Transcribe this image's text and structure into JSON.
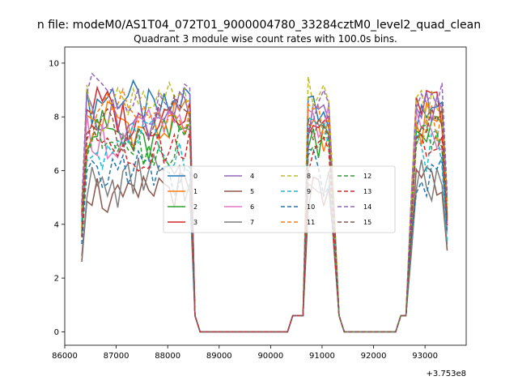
{
  "chart_data": {
    "type": "line",
    "suptitle": "n file: modeM0/AS1T04_072T01_9000004780_33284cztM0_level2_quad_clean",
    "title": "Quadrant 3 module wise count rates with 100.0s bins.",
    "xlabel": "",
    "ylabel": "",
    "offset_label": "+3.753e8",
    "xlim": [
      86000,
      93800
    ],
    "ylim": [
      -0.5,
      10.6
    ],
    "x_ticks": [
      86000,
      87000,
      88000,
      89000,
      90000,
      91000,
      92000,
      93000
    ],
    "x_tick_labels": [
      "86000",
      "87000",
      "88000",
      "89000",
      "90000",
      "91000",
      "92000",
      "93000"
    ],
    "y_ticks": [
      0,
      2,
      4,
      6,
      8,
      10
    ],
    "y_tick_labels": [
      "0",
      "2",
      "4",
      "6",
      "8",
      "10"
    ],
    "grid": false,
    "legend_position": "center",
    "legend_columns": 4,
    "segments": [
      {
        "x_start": 86330,
        "x_end": 88520,
        "level": "high"
      },
      {
        "x_start": 88630,
        "x_end": 90370,
        "level": "zero"
      },
      {
        "x_start": 90670,
        "x_end": 91240,
        "level": "high"
      },
      {
        "x_start": 91340,
        "x_end": 92480,
        "level": "zero"
      },
      {
        "x_start": 92680,
        "x_end": 93430,
        "level": "high"
      }
    ],
    "series": [
      {
        "name": "0",
        "style": "solid",
        "color": "#1f77b4",
        "mean_high": 8.5
      },
      {
        "name": "1",
        "style": "solid",
        "color": "#ff7f0e",
        "mean_high": 7.7
      },
      {
        "name": "2",
        "style": "solid",
        "color": "#2ca02c",
        "mean_high": 7.2
      },
      {
        "name": "3",
        "style": "solid",
        "color": "#d62728",
        "mean_high": 8.1
      },
      {
        "name": "4",
        "style": "solid",
        "color": "#9467bd",
        "mean_high": 8.0
      },
      {
        "name": "5",
        "style": "solid",
        "color": "#8c564b",
        "mean_high": 5.1
      },
      {
        "name": "6",
        "style": "solid",
        "color": "#e377c2",
        "mean_high": 7.4
      },
      {
        "name": "7",
        "style": "solid",
        "color": "#7f7f7f",
        "mean_high": 5.6
      },
      {
        "name": "8",
        "style": "dashed",
        "color": "#bcbd22",
        "mean_high": 8.6
      },
      {
        "name": "9",
        "style": "dashed",
        "color": "#17becf",
        "mean_high": 7.0
      },
      {
        "name": "10",
        "style": "dashed",
        "color": "#1f77b4",
        "mean_high": 5.9
      },
      {
        "name": "11",
        "style": "dashed",
        "color": "#ff7f0e",
        "mean_high": 7.9
      },
      {
        "name": "12",
        "style": "dashed",
        "color": "#2ca02c",
        "mean_high": 7.1
      },
      {
        "name": "13",
        "style": "dashed",
        "color": "#d62728",
        "mean_high": 6.9
      },
      {
        "name": "14",
        "style": "dashed",
        "color": "#9467bd",
        "mean_high": 8.7
      },
      {
        "name": "15",
        "style": "dashed",
        "color": "#8c564b",
        "mean_high": 7.7
      }
    ]
  }
}
